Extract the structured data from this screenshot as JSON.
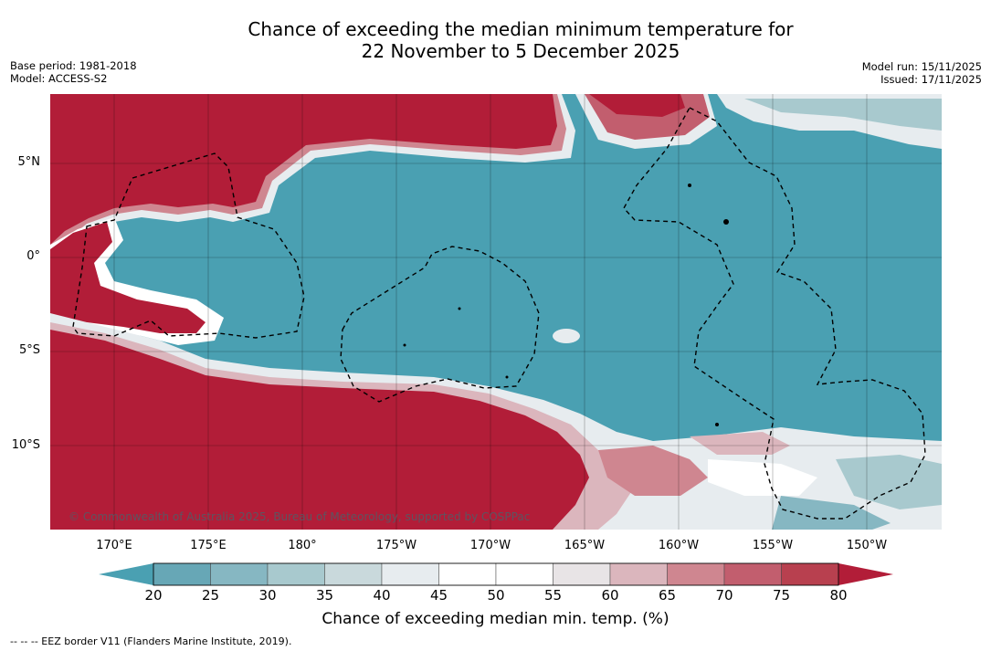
{
  "title": {
    "line1": "Chance of exceeding the median minimum temperature for",
    "line2": "22 November to 5 December 2025"
  },
  "meta_left": {
    "base_period": "Base period: 1981-2018",
    "model": "Model: ACCESS-S2"
  },
  "meta_right": {
    "model_run": "Model run: 15/11/2025",
    "issued": "Issued: 17/11/2025"
  },
  "map": {
    "copyright": "© Commonwealth of Australia 2025, Bureau of Meteorology, supported by COSPPac",
    "lat_labels": [
      "5°N",
      "0°",
      "5°S",
      "10°S"
    ],
    "lon_labels": [
      "170°E",
      "175°E",
      "180°",
      "175°W",
      "170°W",
      "165°W",
      "160°W",
      "155°W",
      "150°W"
    ]
  },
  "colorbar": {
    "label": "Chance of exceeding median min. temp. (%)",
    "ticks": [
      "20",
      "25",
      "30",
      "35",
      "40",
      "45",
      "50",
      "55",
      "60",
      "65",
      "70",
      "75",
      "80"
    ],
    "colors": [
      "#67a7b6",
      "#86b7c2",
      "#a8c9ce",
      "#c9d9dc",
      "#e7ecef",
      "#ffffff",
      "#ffffff",
      "#e8e4e6",
      "#dbb6bd",
      "#cf8690",
      "#c25e6e",
      "#b8404f"
    ],
    "under_color": "#4aa0b2",
    "over_color": "#b21d38"
  },
  "palette": {
    "warm_strong": "#b21d38",
    "cool_strong": "#4aa0b2"
  },
  "footer": "--  --  -- EEZ border V11 (Flanders Marine Institute, 2019)."
}
